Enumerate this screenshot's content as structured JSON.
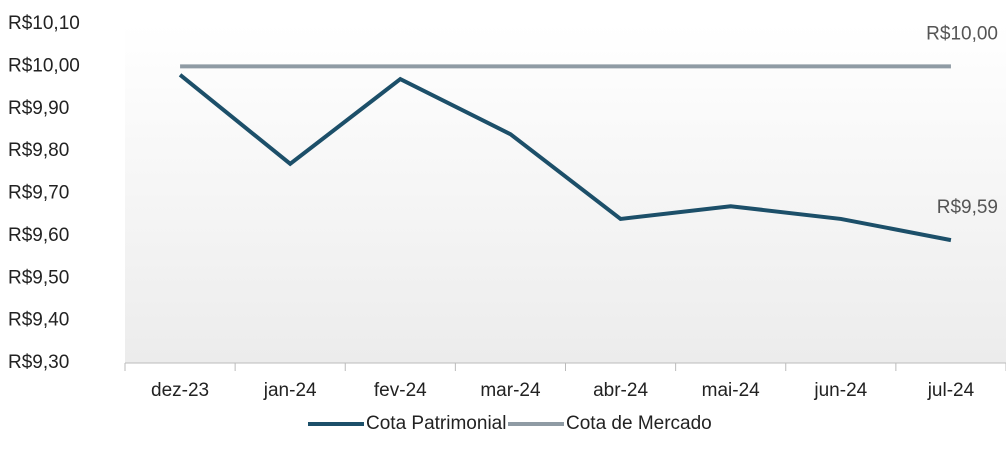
{
  "chart_data": {
    "type": "line",
    "categories": [
      "dez-23",
      "jan-24",
      "fev-24",
      "mar-24",
      "abr-24",
      "mai-24",
      "jun-24",
      "jul-24"
    ],
    "series": [
      {
        "name": "Cota Patrimonial",
        "color": "#1c4f69",
        "values": [
          9.98,
          9.77,
          9.97,
          9.84,
          9.64,
          9.67,
          9.64,
          9.59
        ],
        "value_labels": [
          null,
          null,
          null,
          null,
          null,
          null,
          null,
          "R$9,59"
        ]
      },
      {
        "name": "Cota de Mercado",
        "color": "#8f9ba4",
        "values": [
          10.0,
          10.0,
          10.0,
          10.0,
          10.0,
          10.0,
          10.0,
          10.0
        ],
        "value_labels": [
          null,
          null,
          null,
          null,
          null,
          null,
          null,
          "R$10,00"
        ]
      }
    ],
    "ylim": [
      9.3,
      10.1
    ],
    "yticks": [
      {
        "value": 9.3,
        "label": "R$9,30"
      },
      {
        "value": 9.4,
        "label": "R$9,40"
      },
      {
        "value": 9.5,
        "label": "R$9,50"
      },
      {
        "value": 9.6,
        "label": "R$9,60"
      },
      {
        "value": 9.7,
        "label": "R$9,70"
      },
      {
        "value": 9.8,
        "label": "R$9,80"
      },
      {
        "value": 9.9,
        "label": "R$9,90"
      },
      {
        "value": 10.0,
        "label": "R$10,00"
      },
      {
        "value": 10.1,
        "label": "R$10,10"
      }
    ],
    "grid": false,
    "legend": "bottom"
  }
}
